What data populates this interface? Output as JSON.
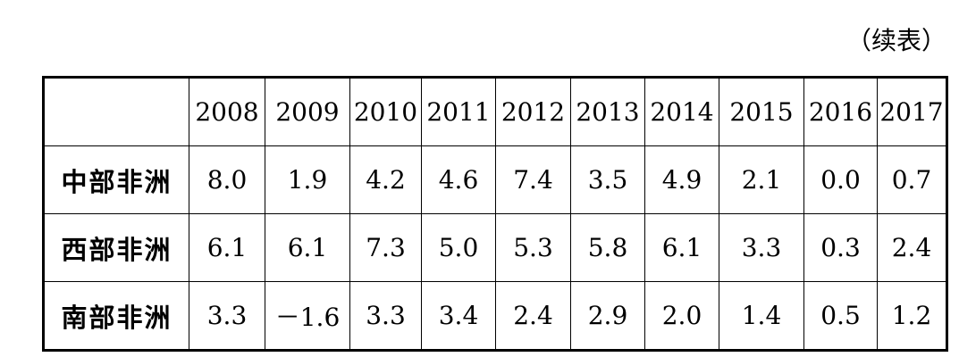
{
  "note": "（续表）",
  "table": {
    "header": [
      "2008",
      "2009",
      "2010",
      "2011",
      "2012",
      "2013",
      "2014",
      "2015",
      "2016",
      "2017"
    ],
    "rows": [
      [
        "中部非洲",
        "8.0",
        "1.9",
        "4.2",
        "4.6",
        "7.4",
        "3.5",
        "4.9",
        "2.1",
        "0.0",
        "0.7"
      ],
      [
        "西部非洲",
        "6.1",
        "6.1",
        "7.3",
        "5.0",
        "5.3",
        "5.8",
        "6.1",
        "3.3",
        "0.3",
        "2.4"
      ],
      [
        "南部非洲",
        "3.3",
        "－1.6",
        "3.3",
        "3.4",
        "2.4",
        "2.9",
        "2.0",
        "1.4",
        "0.5",
        "1.2"
      ]
    ]
  }
}
